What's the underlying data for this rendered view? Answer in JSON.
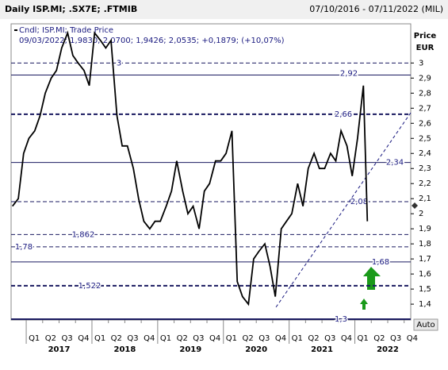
{
  "chart_data": {
    "type": "line",
    "title": "Daily ISP.MI; .SX7E; .FTMIB",
    "date_range": "07/10/2016 - 07/11/2022 (MIL)",
    "legend_title": "Cndl; ISP.MI; Trade Price",
    "legend_detail": "09/03/2022; 1,9830; 2,0700; 1,9426; 2,0535; +0,1879; (+10,07%)",
    "y_label": "Price",
    "y_unit": "EUR",
    "scale_button": "Auto",
    "series": [
      {
        "name": "ISP.MI",
        "color": "#000000",
        "x": [
          2016.79,
          2016.88,
          2016.96,
          2017.04,
          2017.13,
          2017.21,
          2017.29,
          2017.38,
          2017.46,
          2017.54,
          2017.63,
          2017.71,
          2017.79,
          2017.88,
          2017.96,
          2018.04,
          2018.13,
          2018.21,
          2018.29,
          2018.38,
          2018.46,
          2018.54,
          2018.63,
          2018.71,
          2018.79,
          2018.88,
          2018.96,
          2019.04,
          2019.13,
          2019.21,
          2019.29,
          2019.38,
          2019.46,
          2019.54,
          2019.63,
          2019.71,
          2019.79,
          2019.88,
          2019.96,
          2020.04,
          2020.13,
          2020.21,
          2020.29,
          2020.38,
          2020.46,
          2020.54,
          2020.63,
          2020.71,
          2020.79,
          2020.88,
          2020.96,
          2021.04,
          2021.13,
          2021.21,
          2021.29,
          2021.38,
          2021.46,
          2021.54,
          2021.63,
          2021.71,
          2021.79,
          2021.88,
          2021.96,
          2022.04,
          2022.13,
          2022.19
        ],
        "values": [
          2.05,
          2.1,
          2.4,
          2.5,
          2.55,
          2.65,
          2.8,
          2.9,
          2.95,
          3.1,
          3.2,
          3.05,
          3.0,
          2.95,
          2.85,
          3.2,
          3.15,
          3.1,
          3.15,
          2.65,
          2.45,
          2.45,
          2.3,
          2.1,
          1.95,
          1.9,
          1.95,
          1.95,
          2.05,
          2.15,
          2.35,
          2.15,
          2.0,
          2.05,
          1.9,
          2.15,
          2.2,
          2.35,
          2.35,
          2.4,
          2.55,
          1.55,
          1.45,
          1.4,
          1.7,
          1.75,
          1.8,
          1.65,
          1.45,
          1.9,
          1.95,
          2.0,
          2.2,
          2.05,
          2.3,
          2.4,
          2.3,
          2.3,
          2.4,
          2.35,
          2.55,
          2.45,
          2.25,
          2.5,
          2.85,
          1.95
        ]
      }
    ],
    "levels": [
      {
        "value": 3,
        "label": "3",
        "style": "dashed"
      },
      {
        "value": 2.92,
        "label": "2,92",
        "style": "solid"
      },
      {
        "value": 2.66,
        "label": "2,66",
        "style": "dashed-bold"
      },
      {
        "value": 2.34,
        "label": "2,34",
        "style": "solid"
      },
      {
        "value": 2.08,
        "label": "2,08",
        "style": "dashed"
      },
      {
        "value": 1.862,
        "label": "1,862",
        "style": "dashed"
      },
      {
        "value": 1.78,
        "label": "1,78",
        "style": "dashed"
      },
      {
        "value": 1.68,
        "label": "1,68",
        "style": "solid"
      },
      {
        "value": 1.522,
        "label": "1,522",
        "style": "dashed-bold"
      },
      {
        "value": 1.3,
        "label": "1,3",
        "style": "solid-bold"
      }
    ],
    "trendline": {
      "x": [
        2020.8,
        2022.85
      ],
      "values": [
        1.38,
        2.67
      ]
    },
    "xlim": [
      2016.77,
      2022.85
    ],
    "ylim": [
      1.295,
      3.26
    ],
    "yticks": [
      {
        "value": 1.4,
        "label": "1,4"
      },
      {
        "value": 1.5,
        "label": "1,5"
      },
      {
        "value": 1.6,
        "label": "1,6"
      },
      {
        "value": 1.7,
        "label": "1,7"
      },
      {
        "value": 1.8,
        "label": "1,8"
      },
      {
        "value": 1.9,
        "label": "1,9"
      },
      2,
      {
        "value": 2.1,
        "label": "2,1"
      },
      {
        "value": 2.2,
        "label": "2,2"
      },
      {
        "value": 2.3,
        "label": "2,3"
      },
      {
        "value": 2.4,
        "label": "2,4"
      },
      {
        "value": 2.5,
        "label": "2,5"
      },
      {
        "value": 2.6,
        "label": "2,6"
      },
      {
        "value": 2.7,
        "label": "2,7"
      },
      {
        "value": 2.8,
        "label": "2,8"
      },
      {
        "value": 2.9,
        "label": "2,9"
      },
      3
    ],
    "xticks": [
      {
        "value": 2017.0,
        "label": "Q1"
      },
      {
        "value": 2017.25,
        "label": "Q2"
      },
      {
        "value": 2017.5,
        "label": "Q3"
      },
      {
        "value": 2017.75,
        "label": "Q4"
      },
      {
        "value": 2018.0,
        "label": "Q1"
      },
      {
        "value": 2018.25,
        "label": "Q2"
      },
      {
        "value": 2018.5,
        "label": "Q3"
      },
      {
        "value": 2018.75,
        "label": "Q4"
      },
      {
        "value": 2019.0,
        "label": "Q1"
      },
      {
        "value": 2019.25,
        "label": "Q2"
      },
      {
        "value": 2019.5,
        "label": "Q3"
      },
      {
        "value": 2019.75,
        "label": "Q4"
      },
      {
        "value": 2020.0,
        "label": "Q1"
      },
      {
        "value": 2020.25,
        "label": "Q2"
      },
      {
        "value": 2020.5,
        "label": "Q3"
      },
      {
        "value": 2020.75,
        "label": "Q4"
      },
      {
        "value": 2021.0,
        "label": "Q1"
      },
      {
        "value": 2021.25,
        "label": "Q2"
      },
      {
        "value": 2021.5,
        "label": "Q3"
      },
      {
        "value": 2021.75,
        "label": "Q4"
      },
      {
        "value": 2022.0,
        "label": "Q1"
      },
      {
        "value": 2022.25,
        "label": "Q2"
      },
      {
        "value": 2022.5,
        "label": "Q3"
      },
      {
        "value": 2022.75,
        "label": "Q4"
      }
    ],
    "year_ticks": [
      {
        "value": 2017.5,
        "label": "2017"
      },
      {
        "value": 2018.5,
        "label": "2018"
      },
      {
        "value": 2019.5,
        "label": "2019"
      },
      {
        "value": 2020.5,
        "label": "2020"
      },
      {
        "value": 2021.5,
        "label": "2021"
      },
      {
        "value": 2022.5,
        "label": "2022"
      }
    ]
  }
}
